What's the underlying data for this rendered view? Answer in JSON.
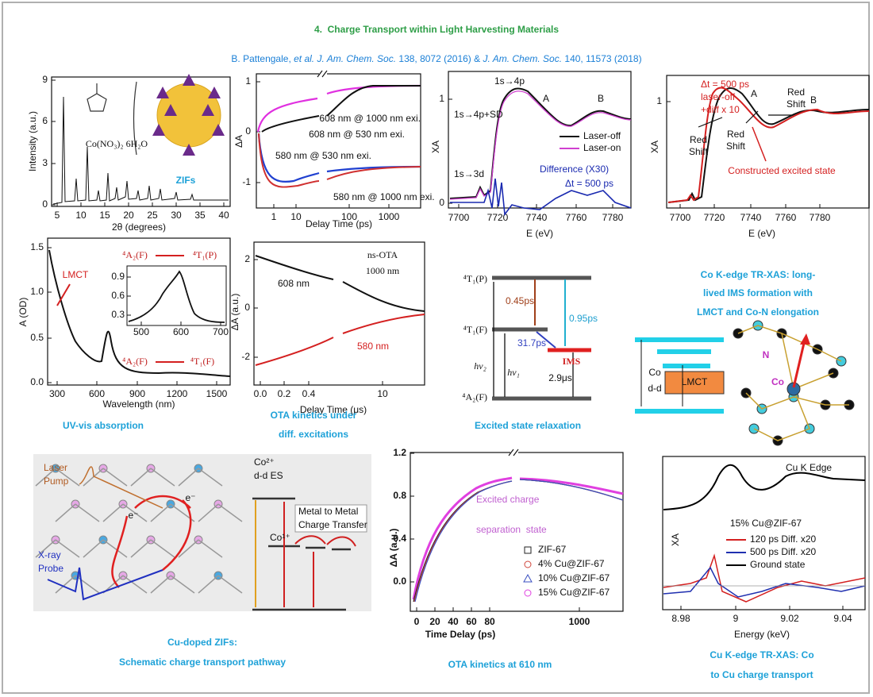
{
  "header": {
    "title": "4.  Charge Transport within Light Harvesting Materials",
    "citation": [
      "B. Pattengale, ",
      "et al. J. Am. Chem. Soc.",
      " 138, 8072 (2016) & ",
      "J. Am. Chem. Soc.",
      " 140, 11573 (2018)"
    ]
  },
  "panels": {
    "xrd": {
      "xlabel": "2θ (degrees)",
      "ylabel": "Intensity (a.u.)",
      "xticks": [
        "5",
        "10",
        "15",
        "20",
        "25",
        "30",
        "35",
        "40"
      ],
      "yticks": [
        "0",
        "3",
        "6",
        "9"
      ],
      "chem": "Co(NO₃)₂ 6H₂O",
      "label": "ZIFs"
    },
    "ota_ps": {
      "xlabel": "Delay Time (ps)",
      "ylabel": "ΔA",
      "xticks": [
        "1",
        "10",
        "100",
        "1000"
      ],
      "yticks": [
        "1",
        "0",
        "-1"
      ],
      "annotations": [
        "608 nm @ 1000 nm exi.",
        "608 nm @ 530 nm exi.",
        "580 nm @ 530 nm exi.",
        "580 nm @ 1000 nm exi."
      ]
    },
    "xas_co": {
      "xlabel": "E (eV)",
      "ylabel": "XA",
      "xticks": [
        "7700",
        "7720",
        "7740",
        "7760",
        "7780"
      ],
      "yticks": [
        "1",
        "0"
      ],
      "annotations": [
        "1s→4p",
        "1s→4p+SD",
        "1s→3d",
        "A",
        "B"
      ],
      "legend": [
        "Laser-off",
        "Laser-on"
      ],
      "difference": [
        "Difference (X30)",
        "Δt = 500 ps"
      ]
    },
    "xas_es": {
      "xlabel": "E (eV)",
      "ylabel": "XA",
      "xticks": [
        "7700",
        "7720",
        "7740",
        "7760",
        "7780"
      ],
      "yticks": [
        "1"
      ],
      "annotations": [
        "Δt = 500 ps",
        "laser-off",
        "+diff x 10",
        "A",
        "B"
      ],
      "shifts": [
        [
          "Red",
          "Shift"
        ],
        [
          "Red",
          "Shift"
        ],
        [
          "Red",
          "Shift"
        ]
      ],
      "constructed": "Constructed excited state",
      "caption": [
        "Co K-edge TR-XAS: long-",
        "lived IMS formation with",
        "LMCT and Co-N elongation"
      ]
    },
    "uvvis": {
      "xlabel": "Wavelength (nm)",
      "ylabel": "A (OD)",
      "xticks": [
        "300",
        "600",
        "900",
        "1200",
        "1500"
      ],
      "yticks": [
        "0.0",
        "0.5",
        "1.0",
        "1.5"
      ],
      "lmct": "LMCT",
      "inset_transition": [
        "⁴A₂(F)",
        "⁴T₁(P)"
      ],
      "inset_xticks": [
        "500",
        "600",
        "700"
      ],
      "inset_yticks": [
        "0.9",
        "0.6",
        "0.3"
      ],
      "transition": [
        "⁴A₂(F)",
        "⁴T₁(F)"
      ],
      "caption": "UV-vis absorption"
    },
    "ota_us": {
      "xlabel": "Delay Time (μs)",
      "ylabel": "ΔA (a.u.)",
      "xticks": [
        "0.0",
        "0.2",
        "0.4",
        "10"
      ],
      "yticks": [
        "2",
        "0",
        "-2"
      ],
      "legend": [
        "ns-OTA",
        "1000 nm"
      ],
      "annotations": [
        "608 nm",
        "580 nm"
      ],
      "caption": [
        "OTA kinetics under",
        "diff. excitations"
      ]
    },
    "relax": {
      "levels": [
        "⁴T₁(P)",
        "⁴T₁(F)",
        "⁴A₂(F)"
      ],
      "ims": "IMS",
      "times": [
        "0.45ps",
        "0.95ps",
        "31.7ps",
        "2.9μs"
      ],
      "hv": [
        "hν₂",
        "hν₁"
      ],
      "caption": "Excited state relaxation"
    },
    "lmct": {
      "codd": [
        "Co",
        "d-d"
      ],
      "lmct": "LMCT",
      "n": "N",
      "co": "Co"
    },
    "cuzif": {
      "pump": [
        "Laser",
        "Pump"
      ],
      "electrons": [
        "e⁻",
        "e⁻"
      ],
      "probe": [
        "X-ray",
        "Probe"
      ],
      "co2": "Co²⁺",
      "ddes": "d-d ES",
      "co1": "Co¹⁺",
      "mmct": [
        "Metal to Metal",
        "Charge Transfer"
      ],
      "caption": [
        "Cu-doped ZIFs:",
        "Schematic charge transport pathway"
      ]
    },
    "ota610": {
      "xlabel": "Time Delay (ps)",
      "ylabel": "ΔA (a.u.)",
      "xticks": [
        "0",
        "20",
        "40",
        "60",
        "80",
        "1000"
      ],
      "yticks": [
        "1.2",
        "0.8",
        "0.4",
        "0.0"
      ],
      "inset": [
        "Excited charge",
        "separation  state"
      ],
      "series": [
        {
          "name": "ZIF-67",
          "color": "#222222"
        },
        {
          "name": "4% Cu@ZIF-67",
          "color": "#d0453a"
        },
        {
          "name": "10% Cu@ZIF-67",
          "color": "#3a4fc0"
        },
        {
          "name": "15% Cu@ZIF-67",
          "color": "#e040e0"
        }
      ],
      "caption": "OTA kinetics at 610 nm"
    },
    "cuk": {
      "title": "Cu K Edge",
      "sample": "15% Cu@ZIF-67",
      "ylabel": "XA",
      "xlabel": "Energy (keV)",
      "xticks": [
        "8.98",
        "9",
        "9.02",
        "9.04"
      ],
      "series": [
        {
          "name": "120 ps Diff. x20",
          "color": "#d42020"
        },
        {
          "name": "500 ps Diff. x20",
          "color": "#2030b0"
        },
        {
          "name": "Ground state",
          "color": "#000000"
        }
      ],
      "caption": [
        "Cu K-edge TR-XAS: Co",
        "to Cu charge transport"
      ]
    }
  }
}
